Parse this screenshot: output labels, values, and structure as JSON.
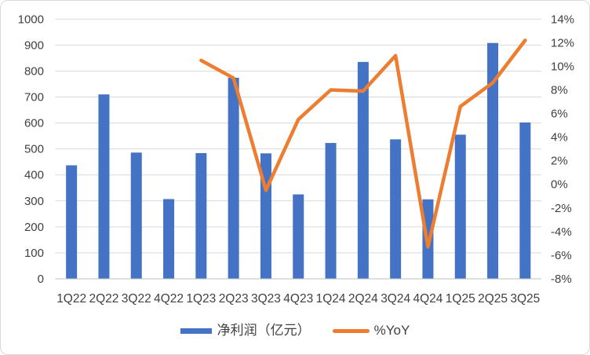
{
  "chart_data": {
    "type": "combo",
    "title": "",
    "categories": [
      "1Q22",
      "2Q22",
      "3Q22",
      "4Q22",
      "1Q23",
      "2Q23",
      "3Q23",
      "4Q23",
      "1Q24",
      "2Q24",
      "3Q24",
      "4Q24",
      "1Q25",
      "2Q25",
      "3Q25"
    ],
    "series": [
      {
        "name": "净利润（亿元）",
        "chart_type": "bar",
        "axis": "left",
        "color": "#4472C4",
        "values": [
          437,
          710,
          486,
          307,
          484,
          774,
          483,
          325,
          523,
          835,
          537,
          306,
          555,
          908,
          602
        ]
      },
      {
        "name": "%YoY",
        "chart_type": "line",
        "axis": "right",
        "color": "#ED7D31",
        "values": [
          null,
          null,
          null,
          null,
          10.5,
          9.0,
          -0.5,
          5.5,
          8.0,
          7.9,
          10.9,
          -5.3,
          6.6,
          8.6,
          12.2
        ]
      }
    ],
    "left_axis": {
      "min": 0,
      "max": 1000,
      "step": 100,
      "tick_labels": [
        "1000",
        "900",
        "800",
        "700",
        "600",
        "500",
        "400",
        "300",
        "200",
        "100",
        "0"
      ]
    },
    "right_axis": {
      "min": -8,
      "max": 14,
      "step": 2,
      "tick_labels": [
        "14%",
        "12%",
        "10%",
        "8%",
        "6%",
        "4%",
        "2%",
        "0%",
        "-2%",
        "-4%",
        "-6%",
        "-8%"
      ]
    },
    "grid": true,
    "legend_position": "bottom",
    "styles": {
      "grid_color": "#D9D9D9",
      "axis_line_color": "#BFBFBF",
      "text_color": "#404040",
      "background": "#FFFFFF",
      "border_color": "#D9D9D9"
    }
  }
}
